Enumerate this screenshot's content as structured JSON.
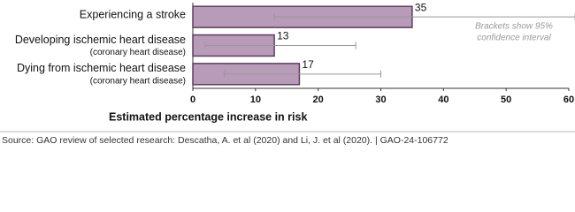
{
  "chart_data": {
    "type": "bar",
    "orientation": "horizontal",
    "categories": [
      "Experiencing a stroke",
      "Developing ischemic heart disease",
      "Dying from ischemic heart disease"
    ],
    "category_sublabels": [
      null,
      "(coronary heart disease)",
      "(coronary heart disease)"
    ],
    "values": [
      35,
      13,
      17
    ],
    "ci_low": [
      13,
      2,
      5
    ],
    "ci_high": [
      61,
      26,
      30
    ],
    "color": "#b89bb8",
    "edge_color": "#5e3d5e",
    "ci_color": "#999999",
    "xlim": [
      0,
      60
    ],
    "xticks": [
      0,
      10,
      20,
      30,
      40,
      50,
      60
    ],
    "x_label": "Estimated percentage increase in risk",
    "annotation": [
      "Brackets show 95%",
      "confidence interval"
    ],
    "source": "Source: GAO review of selected research: Descatha, A. et al (2020) and Li, J. et al (2020).  |  GAO-24-106772"
  }
}
